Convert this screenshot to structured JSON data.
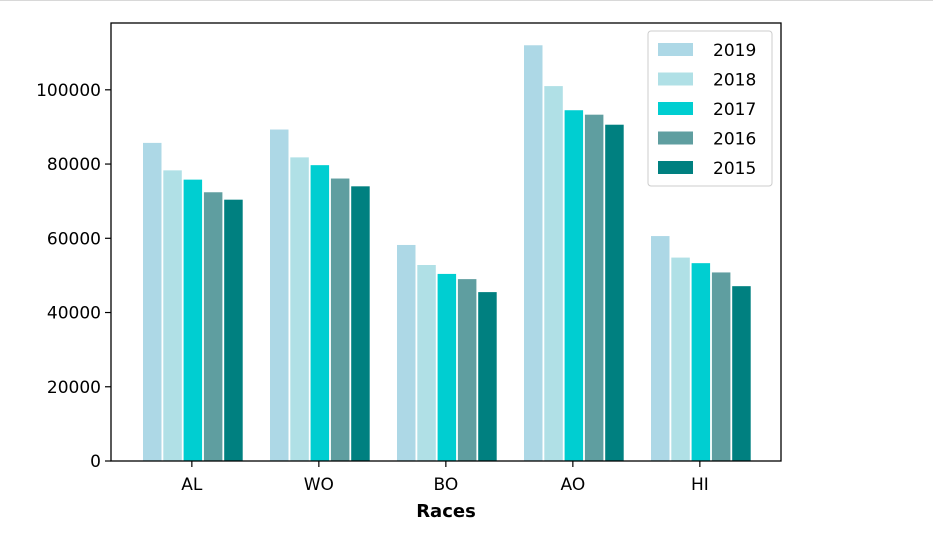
{
  "chart_data": {
    "type": "bar",
    "xlabel": "Races",
    "ylabel": "",
    "title": "",
    "categories": [
      "AL",
      "WO",
      "BO",
      "AO",
      "HI"
    ],
    "ylim": [
      0,
      118000
    ],
    "yticks": [
      0,
      20000,
      40000,
      60000,
      80000,
      100000
    ],
    "grid": false,
    "legend_position": "top-right",
    "series": [
      {
        "name": "2019",
        "color": "#add8e6",
        "values": [
          85700,
          89300,
          58200,
          112000,
          60600
        ]
      },
      {
        "name": "2018",
        "color": "#b0e0e6",
        "values": [
          78300,
          81800,
          52800,
          101000,
          54800
        ]
      },
      {
        "name": "2017",
        "color": "#00ced1",
        "values": [
          75800,
          79700,
          50400,
          94500,
          53300
        ]
      },
      {
        "name": "2016",
        "color": "#5f9ea0",
        "values": [
          72400,
          76100,
          49000,
          93300,
          50800
        ]
      },
      {
        "name": "2015",
        "color": "#008080",
        "values": [
          70400,
          74000,
          45500,
          90600,
          47100
        ]
      }
    ]
  }
}
